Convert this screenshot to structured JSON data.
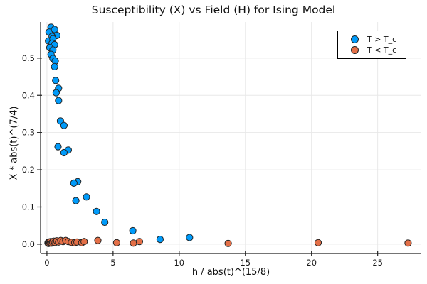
{
  "title": "Susceptibility (X) vs Field (H) for Ising Model",
  "chart_data": {
    "type": "scatter",
    "title": "Susceptibility (X) vs Field (H) for Ising Model",
    "xlabel": "h / abs(t)^(15/8)",
    "ylabel": "X * abs(t)^(7/4)",
    "xlim": [
      -0.48,
      28.3
    ],
    "ylim": [
      -0.025,
      0.597
    ],
    "grid": true,
    "legend_position": "top-right",
    "background": "#ffffff",
    "grid_color": "#e8e8e8",
    "spine_color": "#222222",
    "marker_stroke": "#222222",
    "xticks": [
      {
        "v": 0,
        "label": "0"
      },
      {
        "v": 5,
        "label": "5"
      },
      {
        "v": 10,
        "label": "10"
      },
      {
        "v": 15,
        "label": "15"
      },
      {
        "v": 20,
        "label": "20"
      },
      {
        "v": 25,
        "label": "25"
      }
    ],
    "yticks": [
      {
        "v": 0.0,
        "label": "0.0"
      },
      {
        "v": 0.1,
        "label": "0.1"
      },
      {
        "v": 0.2,
        "label": "0.2"
      },
      {
        "v": 0.3,
        "label": "0.3"
      },
      {
        "v": 0.4,
        "label": "0.4"
      },
      {
        "v": 0.5,
        "label": "0.5"
      }
    ],
    "series": [
      {
        "name": "T > T_c",
        "color": "#009BFA",
        "points": [
          [
            0.31,
            0.583
          ],
          [
            0.16,
            0.57
          ],
          [
            0.58,
            0.577
          ],
          [
            0.75,
            0.561
          ],
          [
            0.39,
            0.558
          ],
          [
            0.12,
            0.546
          ],
          [
            0.45,
            0.552
          ],
          [
            0.39,
            0.54
          ],
          [
            0.58,
            0.536
          ],
          [
            0.22,
            0.528
          ],
          [
            0.45,
            0.522
          ],
          [
            0.31,
            0.51
          ],
          [
            0.45,
            0.499
          ],
          [
            0.63,
            0.492
          ],
          [
            0.58,
            0.477
          ],
          [
            0.66,
            0.44
          ],
          [
            0.88,
            0.419
          ],
          [
            0.7,
            0.407
          ],
          [
            0.88,
            0.386
          ],
          [
            1.02,
            0.331
          ],
          [
            1.29,
            0.319
          ],
          [
            0.84,
            0.262
          ],
          [
            1.61,
            0.253
          ],
          [
            1.29,
            0.246
          ],
          [
            2.33,
            0.168
          ],
          [
            2.04,
            0.164
          ],
          [
            2.99,
            0.127
          ],
          [
            2.19,
            0.117
          ],
          [
            3.75,
            0.088
          ],
          [
            4.37,
            0.059
          ],
          [
            6.49,
            0.036
          ],
          [
            8.55,
            0.013
          ],
          [
            10.78,
            0.018
          ]
        ]
      },
      {
        "name": "T < T_c",
        "color": "#E36F47",
        "points": [
          [
            0.08,
            0.003
          ],
          [
            0.1,
            0.005
          ],
          [
            0.12,
            0.002
          ],
          [
            0.14,
            0.006
          ],
          [
            0.16,
            0.003
          ],
          [
            0.2,
            0.006
          ],
          [
            0.25,
            0.004
          ],
          [
            0.3,
            0.007
          ],
          [
            0.36,
            0.003
          ],
          [
            0.43,
            0.006
          ],
          [
            0.52,
            0.008
          ],
          [
            0.62,
            0.005
          ],
          [
            0.74,
            0.009
          ],
          [
            0.88,
            0.006
          ],
          [
            1.05,
            0.01
          ],
          [
            1.22,
            0.007
          ],
          [
            1.42,
            0.01
          ],
          [
            1.62,
            0.007
          ],
          [
            1.85,
            0.005
          ],
          [
            2.1,
            0.004
          ],
          [
            2.27,
            0.006
          ],
          [
            2.63,
            0.004
          ],
          [
            2.81,
            0.007
          ],
          [
            3.85,
            0.01
          ],
          [
            5.27,
            0.004
          ],
          [
            6.54,
            0.003
          ],
          [
            6.99,
            0.007
          ],
          [
            13.7,
            0.002
          ],
          [
            20.5,
            0.004
          ],
          [
            27.3,
            0.003
          ]
        ]
      }
    ]
  }
}
